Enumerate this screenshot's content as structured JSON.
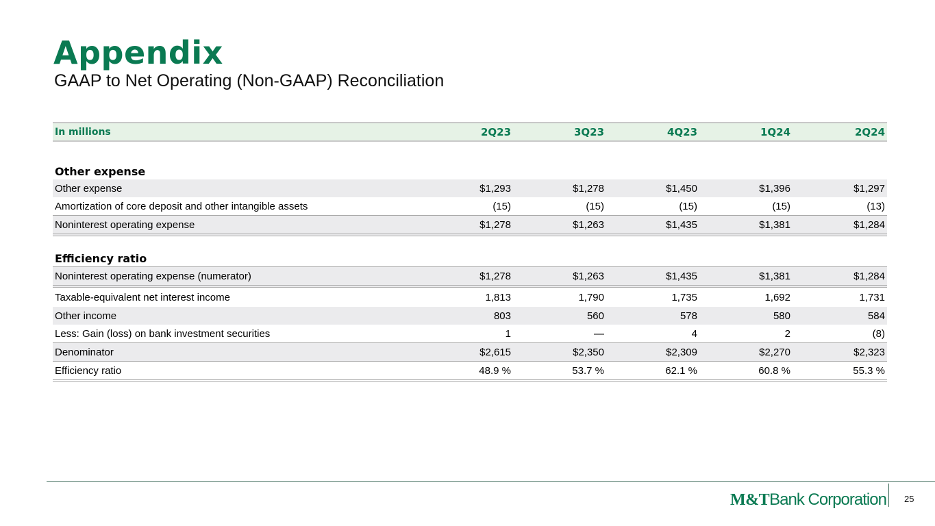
{
  "header": {
    "title": "Appendix",
    "subtitle": "GAAP to Net Operating (Non-GAAP) Reconciliation"
  },
  "table": {
    "unit_label": "In millions",
    "columns": [
      "2Q23",
      "3Q23",
      "4Q23",
      "1Q24",
      "2Q24"
    ],
    "sections": [
      {
        "heading": "Other expense",
        "rows": [
          {
            "label": "Other expense",
            "values": [
              "$1,293",
              "$1,278",
              "$1,450",
              "$1,396",
              "$1,297"
            ]
          },
          {
            "label": "Amortization of core deposit and other intangible assets",
            "values": [
              "(15)",
              "(15)",
              "(15)",
              "(15)",
              "(13)"
            ]
          },
          {
            "label": "Noninterest operating expense",
            "values": [
              "$1,278",
              "$1,263",
              "$1,435",
              "$1,381",
              "$1,284"
            ]
          }
        ]
      },
      {
        "heading": "Efficiency ratio",
        "rows": [
          {
            "label": "Noninterest operating expense (numerator)",
            "values": [
              "$1,278",
              "$1,263",
              "$1,435",
              "$1,381",
              "$1,284"
            ]
          },
          {
            "label": "Taxable-equivalent net interest income",
            "values": [
              "1,813",
              "1,790",
              "1,735",
              "1,692",
              "1,731"
            ]
          },
          {
            "label": "Other income",
            "values": [
              "803",
              "560",
              "578",
              "580",
              "584"
            ]
          },
          {
            "label": "Less: Gain (loss) on bank investment securities",
            "values": [
              "1",
              "—",
              "4",
              "2",
              "(8)"
            ]
          },
          {
            "label": "Denominator",
            "values": [
              "$2,615",
              "$2,350",
              "$2,309",
              "$2,270",
              "$2,323"
            ]
          },
          {
            "label": "Efficiency ratio",
            "values": [
              "48.9 %",
              "53.7 %",
              "62.1 %",
              "60.8 %",
              "55.3 %"
            ]
          }
        ]
      }
    ]
  },
  "footer": {
    "logo_bold": "M&T",
    "logo_rest": "Bank Corporation",
    "page_number": "25"
  },
  "colors": {
    "brand_green": "#0a7a52",
    "header_fill": "#e6f2e6",
    "row_shade": "#ebebed"
  }
}
